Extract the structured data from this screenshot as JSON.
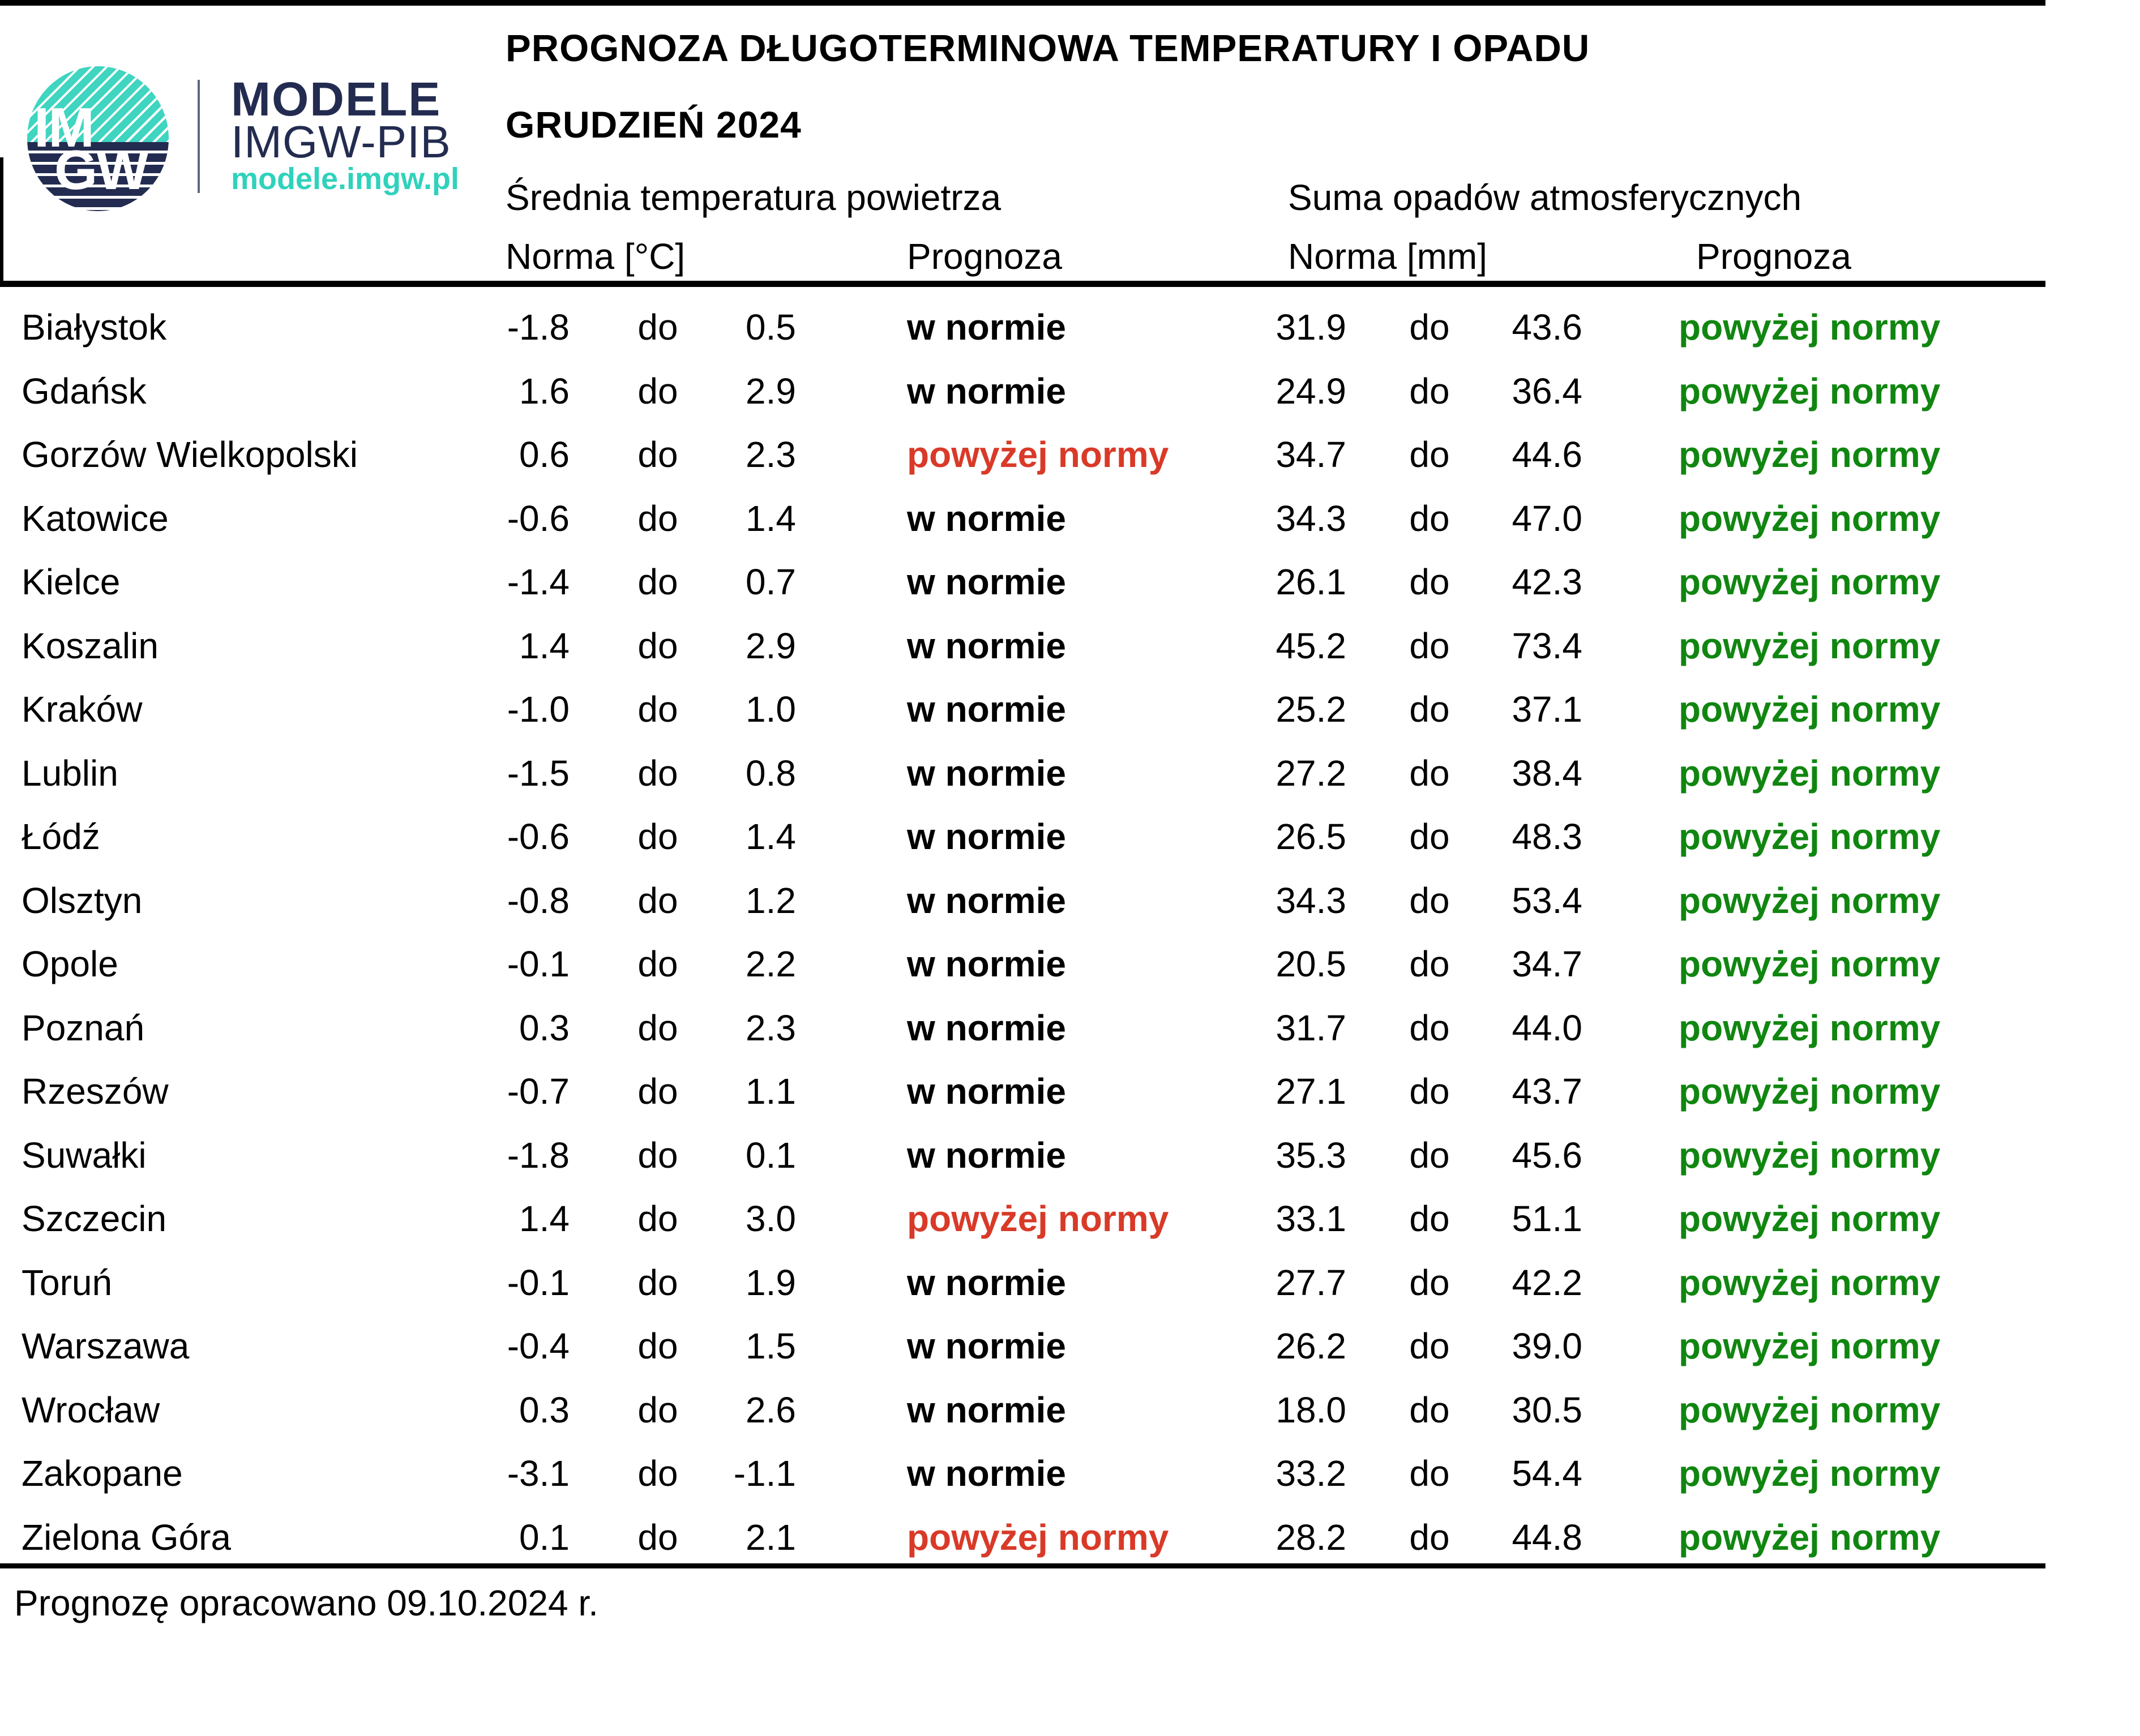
{
  "brand": {
    "logo_im": "IM",
    "logo_gw": "GW",
    "name_line1": "MODELE",
    "name_line2": "IMGW-PIB",
    "site": "modele.imgw.pl",
    "navy": "#232c50",
    "teal": "#3fd5c0"
  },
  "chart_data": {
    "type": "table",
    "title": "PROGNOZA DŁUGOTERMINOWA TEMPERATURY I OPADU",
    "subtitle": "GRUDZIEŃ 2024",
    "sections": {
      "temperature": "Średnia temperatura powietrza",
      "precipitation": "Suma opadów atmosferycznych"
    },
    "column_headers": {
      "temp_norm": "Norma [°C]",
      "temp_forecast": "Prognoza",
      "precip_norm": "Norma [mm]",
      "precip_forecast": "Prognoza"
    },
    "range_word": "do",
    "forecast_values": {
      "in_norm": "w normie",
      "above_norm": "powyżej normy"
    },
    "rows": [
      {
        "city": "Białystok",
        "temp_norm_min": -1.8,
        "temp_norm_max": 0.5,
        "temp_forecast": "w normie",
        "precip_norm_min": 31.9,
        "precip_norm_max": 43.6,
        "precip_forecast": "powyżej normy"
      },
      {
        "city": "Gdańsk",
        "temp_norm_min": 1.6,
        "temp_norm_max": 2.9,
        "temp_forecast": "w normie",
        "precip_norm_min": 24.9,
        "precip_norm_max": 36.4,
        "precip_forecast": "powyżej normy"
      },
      {
        "city": "Gorzów Wielkopolski",
        "temp_norm_min": 0.6,
        "temp_norm_max": 2.3,
        "temp_forecast": "powyżej normy",
        "precip_norm_min": 34.7,
        "precip_norm_max": 44.6,
        "precip_forecast": "powyżej normy"
      },
      {
        "city": "Katowice",
        "temp_norm_min": -0.6,
        "temp_norm_max": 1.4,
        "temp_forecast": "w normie",
        "precip_norm_min": 34.3,
        "precip_norm_max": 47.0,
        "precip_forecast": "powyżej normy"
      },
      {
        "city": "Kielce",
        "temp_norm_min": -1.4,
        "temp_norm_max": 0.7,
        "temp_forecast": "w normie",
        "precip_norm_min": 26.1,
        "precip_norm_max": 42.3,
        "precip_forecast": "powyżej normy"
      },
      {
        "city": "Koszalin",
        "temp_norm_min": 1.4,
        "temp_norm_max": 2.9,
        "temp_forecast": "w normie",
        "precip_norm_min": 45.2,
        "precip_norm_max": 73.4,
        "precip_forecast": "powyżej normy"
      },
      {
        "city": "Kraków",
        "temp_norm_min": -1.0,
        "temp_norm_max": 1.0,
        "temp_forecast": "w normie",
        "precip_norm_min": 25.2,
        "precip_norm_max": 37.1,
        "precip_forecast": "powyżej normy"
      },
      {
        "city": "Lublin",
        "temp_norm_min": -1.5,
        "temp_norm_max": 0.8,
        "temp_forecast": "w normie",
        "precip_norm_min": 27.2,
        "precip_norm_max": 38.4,
        "precip_forecast": "powyżej normy"
      },
      {
        "city": "Łódź",
        "temp_norm_min": -0.6,
        "temp_norm_max": 1.4,
        "temp_forecast": "w normie",
        "precip_norm_min": 26.5,
        "precip_norm_max": 48.3,
        "precip_forecast": "powyżej normy"
      },
      {
        "city": "Olsztyn",
        "temp_norm_min": -0.8,
        "temp_norm_max": 1.2,
        "temp_forecast": "w normie",
        "precip_norm_min": 34.3,
        "precip_norm_max": 53.4,
        "precip_forecast": "powyżej normy"
      },
      {
        "city": "Opole",
        "temp_norm_min": -0.1,
        "temp_norm_max": 2.2,
        "temp_forecast": "w normie",
        "precip_norm_min": 20.5,
        "precip_norm_max": 34.7,
        "precip_forecast": "powyżej normy"
      },
      {
        "city": "Poznań",
        "temp_norm_min": 0.3,
        "temp_norm_max": 2.3,
        "temp_forecast": "w normie",
        "precip_norm_min": 31.7,
        "precip_norm_max": 44.0,
        "precip_forecast": "powyżej normy"
      },
      {
        "city": "Rzeszów",
        "temp_norm_min": -0.7,
        "temp_norm_max": 1.1,
        "temp_forecast": "w normie",
        "precip_norm_min": 27.1,
        "precip_norm_max": 43.7,
        "precip_forecast": "powyżej normy"
      },
      {
        "city": "Suwałki",
        "temp_norm_min": -1.8,
        "temp_norm_max": 0.1,
        "temp_forecast": "w normie",
        "precip_norm_min": 35.3,
        "precip_norm_max": 45.6,
        "precip_forecast": "powyżej normy"
      },
      {
        "city": "Szczecin",
        "temp_norm_min": 1.4,
        "temp_norm_max": 3.0,
        "temp_forecast": "powyżej normy",
        "precip_norm_min": 33.1,
        "precip_norm_max": 51.1,
        "precip_forecast": "powyżej normy"
      },
      {
        "city": "Toruń",
        "temp_norm_min": -0.1,
        "temp_norm_max": 1.9,
        "temp_forecast": "w normie",
        "precip_norm_min": 27.7,
        "precip_norm_max": 42.2,
        "precip_forecast": "powyżej normy"
      },
      {
        "city": "Warszawa",
        "temp_norm_min": -0.4,
        "temp_norm_max": 1.5,
        "temp_forecast": "w normie",
        "precip_norm_min": 26.2,
        "precip_norm_max": 39.0,
        "precip_forecast": "powyżej normy"
      },
      {
        "city": "Wrocław",
        "temp_norm_min": 0.3,
        "temp_norm_max": 2.6,
        "temp_forecast": "w normie",
        "precip_norm_min": 18.0,
        "precip_norm_max": 30.5,
        "precip_forecast": "powyżej normy"
      },
      {
        "city": "Zakopane",
        "temp_norm_min": -3.1,
        "temp_norm_max": -1.1,
        "temp_forecast": "w normie",
        "precip_norm_min": 33.2,
        "precip_norm_max": 54.4,
        "precip_forecast": "powyżej normy"
      },
      {
        "city": "Zielona Góra",
        "temp_norm_min": 0.1,
        "temp_norm_max": 2.1,
        "temp_forecast": "powyżej normy",
        "precip_norm_min": 28.2,
        "precip_norm_max": 44.8,
        "precip_forecast": "powyżej normy"
      }
    ]
  },
  "styles": {
    "in_norm_color": "#000000",
    "above_norm_temp_color": "#d93a28",
    "above_norm_precip_color": "#108610"
  },
  "footer": {
    "note": "Prognozę opracowano 09.10.2024 r."
  }
}
